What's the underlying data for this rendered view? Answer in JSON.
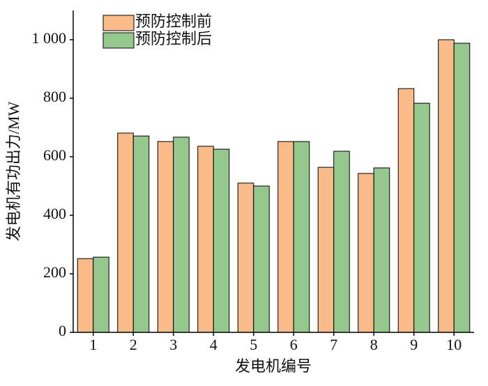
{
  "chart_data": {
    "type": "bar",
    "x_label": "发电机编号",
    "y_label": "发电机有功出力/MW",
    "categories": [
      "1",
      "2",
      "3",
      "4",
      "5",
      "6",
      "7",
      "8",
      "9",
      "10"
    ],
    "series": [
      {
        "name": "预防控制前",
        "color": "#f9bb8a",
        "values": [
          252,
          681,
          652,
          636,
          510,
          652,
          564,
          543,
          833,
          1000
        ]
      },
      {
        "name": "预防控制后",
        "color": "#95c88c",
        "values": [
          257,
          671,
          667,
          626,
          500,
          652,
          619,
          562,
          783,
          988
        ]
      }
    ],
    "ylim": [
      0,
      1100
    ],
    "yticks": [
      0,
      200,
      400,
      600,
      800,
      {
        "value": 1000,
        "label": "1 000"
      }
    ],
    "legend": "upper-left"
  }
}
